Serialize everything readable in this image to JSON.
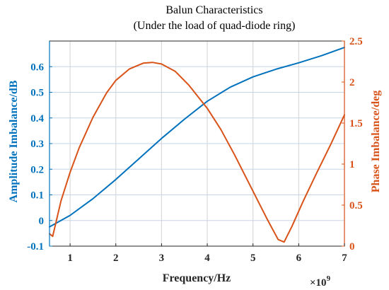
{
  "chart_data": {
    "type": "line",
    "title": "Balun Characteristics",
    "subtitle": "(Under the load of quad-diode ring)",
    "xlabel": "Frequency/Hz",
    "x_multiplier_label": "×10",
    "x_multiplier_exponent": "9",
    "xlim": [
      0.55,
      7
    ],
    "x_ticks": [
      1,
      2,
      3,
      4,
      5,
      6,
      7
    ],
    "x_tick_labels": [
      "1",
      "2",
      "3",
      "4",
      "5",
      "6",
      "7"
    ],
    "grid": true,
    "axes": {
      "left": {
        "label": "Amplitude Imbalance/dB",
        "color": "#0072BD",
        "ylim": [
          -0.1,
          0.7
        ],
        "ticks": [
          -0.1,
          0,
          0.1,
          0.2,
          0.3,
          0.4,
          0.5,
          0.6
        ],
        "tick_labels": [
          "-0.1",
          "0",
          "0.1",
          "0.2",
          "0.3",
          "0.4",
          "0.5",
          "0.6"
        ]
      },
      "right": {
        "label": "Phase Imbalance/deg",
        "color": "#D95319",
        "ylim": [
          0,
          2.5
        ],
        "ticks": [
          0,
          0.5,
          1,
          1.5,
          2,
          2.5
        ],
        "tick_labels": [
          "0",
          "0.5",
          "1",
          "1.5",
          "2",
          "2.5"
        ]
      }
    },
    "series": [
      {
        "axis": "left",
        "color": "#0072BD",
        "x": [
          0.55,
          1.0,
          1.5,
          2.0,
          2.5,
          3.0,
          3.5,
          4.0,
          4.5,
          5.0,
          5.5,
          6.0,
          6.5,
          7.0
        ],
        "y": [
          -0.025,
          0.02,
          0.085,
          0.16,
          0.24,
          0.32,
          0.395,
          0.465,
          0.52,
          0.56,
          0.59,
          0.615,
          0.643,
          0.675
        ]
      },
      {
        "axis": "right",
        "color": "#D95319",
        "x": [
          0.55,
          0.62,
          0.8,
          1.0,
          1.2,
          1.5,
          1.8,
          2.0,
          2.3,
          2.6,
          2.8,
          3.0,
          3.3,
          3.6,
          4.0,
          4.3,
          4.6,
          5.0,
          5.3,
          5.55,
          5.68,
          5.85,
          6.1,
          6.4,
          6.7,
          7.0
        ],
        "y": [
          0.15,
          0.12,
          0.55,
          0.9,
          1.2,
          1.57,
          1.87,
          2.02,
          2.16,
          2.23,
          2.24,
          2.22,
          2.13,
          1.96,
          1.68,
          1.42,
          1.11,
          0.67,
          0.34,
          0.08,
          0.05,
          0.24,
          0.55,
          0.9,
          1.24,
          1.6
        ]
      }
    ]
  }
}
